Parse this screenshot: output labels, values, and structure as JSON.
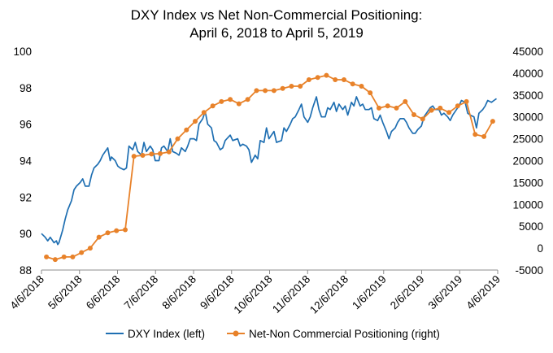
{
  "chart_data": {
    "type": "line",
    "title_line1": "DXY Index vs Net Non-Commercial Positioning:",
    "title_line2": "April 6, 2018 to April 5, 2019",
    "x_start": "2018-04-06",
    "x_end": "2019-04-06",
    "x_ticks": [
      "4/6/2018",
      "5/6/2018",
      "6/6/2018",
      "7/6/2018",
      "8/6/2018",
      "9/6/2018",
      "10/6/2018",
      "11/6/2018",
      "12/6/2018",
      "1/6/2019",
      "2/6/2019",
      "3/6/2019",
      "4/6/2019"
    ],
    "y_left": {
      "min": 88,
      "max": 100,
      "ticks": [
        88,
        90,
        92,
        94,
        96,
        98,
        100
      ]
    },
    "y_right": {
      "min": -5000,
      "max": 45000,
      "ticks": [
        -5000,
        0,
        5000,
        10000,
        15000,
        20000,
        25000,
        30000,
        35000,
        40000,
        45000
      ]
    },
    "colors": {
      "dxy": "#1f6fb2",
      "net": "#e8822a",
      "axis": "#8c8c8c"
    },
    "legend": [
      "DXY Index (left)",
      "Net-Non Commercial Positioning (right)"
    ],
    "series": [
      {
        "name": "DXY Index (left)",
        "axis": "left",
        "points": [
          [
            "2018-04-06",
            90.0
          ],
          [
            "2018-04-09",
            89.8
          ],
          [
            "2018-04-11",
            89.6
          ],
          [
            "2018-04-13",
            89.8
          ],
          [
            "2018-04-16",
            89.5
          ],
          [
            "2018-04-18",
            89.6
          ],
          [
            "2018-04-19",
            89.4
          ],
          [
            "2018-04-20",
            89.5
          ],
          [
            "2018-04-23",
            90.2
          ],
          [
            "2018-04-25",
            90.8
          ],
          [
            "2018-04-27",
            91.3
          ],
          [
            "2018-04-30",
            91.8
          ],
          [
            "2018-05-02",
            92.4
          ],
          [
            "2018-05-04",
            92.6
          ],
          [
            "2018-05-07",
            92.8
          ],
          [
            "2018-05-09",
            93.0
          ],
          [
            "2018-05-11",
            92.6
          ],
          [
            "2018-05-14",
            92.6
          ],
          [
            "2018-05-16",
            93.2
          ],
          [
            "2018-05-18",
            93.6
          ],
          [
            "2018-05-21",
            93.8
          ],
          [
            "2018-05-23",
            94.0
          ],
          [
            "2018-05-25",
            94.3
          ],
          [
            "2018-05-29",
            94.7
          ],
          [
            "2018-05-31",
            94.0
          ],
          [
            "2018-06-01",
            94.2
          ],
          [
            "2018-06-04",
            94.0
          ],
          [
            "2018-06-06",
            93.7
          ],
          [
            "2018-06-08",
            93.6
          ],
          [
            "2018-06-11",
            93.5
          ],
          [
            "2018-06-13",
            93.6
          ],
          [
            "2018-06-15",
            94.8
          ],
          [
            "2018-06-18",
            94.6
          ],
          [
            "2018-06-20",
            95.0
          ],
          [
            "2018-06-22",
            94.5
          ],
          [
            "2018-06-25",
            94.3
          ],
          [
            "2018-06-27",
            95.0
          ],
          [
            "2018-06-29",
            94.5
          ],
          [
            "2018-07-02",
            94.8
          ],
          [
            "2018-07-04",
            94.6
          ],
          [
            "2018-07-06",
            94.0
          ],
          [
            "2018-07-09",
            94.0
          ],
          [
            "2018-07-11",
            94.7
          ],
          [
            "2018-07-13",
            94.8
          ],
          [
            "2018-07-16",
            94.5
          ],
          [
            "2018-07-18",
            95.2
          ],
          [
            "2018-07-20",
            94.5
          ],
          [
            "2018-07-23",
            94.4
          ],
          [
            "2018-07-25",
            94.3
          ],
          [
            "2018-07-27",
            94.7
          ],
          [
            "2018-07-30",
            94.5
          ],
          [
            "2018-08-01",
            94.8
          ],
          [
            "2018-08-03",
            95.2
          ],
          [
            "2018-08-06",
            95.2
          ],
          [
            "2018-08-08",
            95.1
          ],
          [
            "2018-08-10",
            96.0
          ],
          [
            "2018-08-13",
            96.3
          ],
          [
            "2018-08-15",
            96.7
          ],
          [
            "2018-08-17",
            96.0
          ],
          [
            "2018-08-20",
            95.8
          ],
          [
            "2018-08-22",
            95.1
          ],
          [
            "2018-08-24",
            95.0
          ],
          [
            "2018-08-27",
            94.6
          ],
          [
            "2018-08-29",
            94.7
          ],
          [
            "2018-08-31",
            95.1
          ],
          [
            "2018-09-04",
            95.4
          ],
          [
            "2018-09-06",
            95.1
          ],
          [
            "2018-09-10",
            95.2
          ],
          [
            "2018-09-12",
            94.8
          ],
          [
            "2018-09-14",
            94.9
          ],
          [
            "2018-09-17",
            94.8
          ],
          [
            "2018-09-19",
            94.6
          ],
          [
            "2018-09-21",
            93.9
          ],
          [
            "2018-09-24",
            94.3
          ],
          [
            "2018-09-26",
            94.1
          ],
          [
            "2018-09-28",
            95.1
          ],
          [
            "2018-10-01",
            95.0
          ],
          [
            "2018-10-03",
            95.8
          ],
          [
            "2018-10-05",
            95.2
          ],
          [
            "2018-10-09",
            95.6
          ],
          [
            "2018-10-11",
            95.0
          ],
          [
            "2018-10-15",
            95.1
          ],
          [
            "2018-10-17",
            95.8
          ],
          [
            "2018-10-19",
            95.6
          ],
          [
            "2018-10-22",
            96.0
          ],
          [
            "2018-10-24",
            96.3
          ],
          [
            "2018-10-26",
            96.4
          ],
          [
            "2018-10-29",
            96.8
          ],
          [
            "2018-10-31",
            97.1
          ],
          [
            "2018-11-02",
            96.4
          ],
          [
            "2018-11-05",
            96.1
          ],
          [
            "2018-11-07",
            96.4
          ],
          [
            "2018-11-09",
            96.9
          ],
          [
            "2018-11-12",
            97.5
          ],
          [
            "2018-11-14",
            96.8
          ],
          [
            "2018-11-16",
            96.4
          ],
          [
            "2018-11-19",
            96.4
          ],
          [
            "2018-11-21",
            96.9
          ],
          [
            "2018-11-23",
            96.8
          ],
          [
            "2018-11-26",
            97.2
          ],
          [
            "2018-11-28",
            96.7
          ],
          [
            "2018-11-30",
            97.1
          ],
          [
            "2018-12-03",
            96.8
          ],
          [
            "2018-12-05",
            97.0
          ],
          [
            "2018-12-07",
            96.5
          ],
          [
            "2018-12-10",
            97.2
          ],
          [
            "2018-12-12",
            97.0
          ],
          [
            "2018-12-14",
            97.5
          ],
          [
            "2018-12-17",
            97.0
          ],
          [
            "2018-12-19",
            97.1
          ],
          [
            "2018-12-21",
            96.8
          ],
          [
            "2018-12-24",
            96.8
          ],
          [
            "2018-12-26",
            96.9
          ],
          [
            "2018-12-28",
            96.3
          ],
          [
            "2018-12-31",
            96.2
          ],
          [
            "2019-01-02",
            96.5
          ],
          [
            "2019-01-04",
            96.1
          ],
          [
            "2019-01-07",
            95.6
          ],
          [
            "2019-01-09",
            95.2
          ],
          [
            "2019-01-11",
            95.6
          ],
          [
            "2019-01-14",
            95.8
          ],
          [
            "2019-01-16",
            96.1
          ],
          [
            "2019-01-18",
            96.3
          ],
          [
            "2019-01-21",
            96.3
          ],
          [
            "2019-01-23",
            96.1
          ],
          [
            "2019-01-25",
            95.8
          ],
          [
            "2019-01-28",
            95.5
          ],
          [
            "2019-01-30",
            95.5
          ],
          [
            "2019-02-01",
            95.7
          ],
          [
            "2019-02-04",
            95.9
          ],
          [
            "2019-02-06",
            96.4
          ],
          [
            "2019-02-08",
            96.6
          ],
          [
            "2019-02-11",
            96.9
          ],
          [
            "2019-02-13",
            97.0
          ],
          [
            "2019-02-15",
            96.8
          ],
          [
            "2019-02-18",
            96.8
          ],
          [
            "2019-02-20",
            96.5
          ],
          [
            "2019-02-22",
            96.6
          ],
          [
            "2019-02-25",
            96.4
          ],
          [
            "2019-02-27",
            96.2
          ],
          [
            "2019-03-01",
            96.5
          ],
          [
            "2019-03-04",
            96.8
          ],
          [
            "2019-03-06",
            97.0
          ],
          [
            "2019-03-08",
            97.3
          ],
          [
            "2019-03-11",
            97.2
          ],
          [
            "2019-03-13",
            96.6
          ],
          [
            "2019-03-15",
            96.5
          ],
          [
            "2019-03-18",
            96.4
          ],
          [
            "2019-03-20",
            95.8
          ],
          [
            "2019-03-22",
            96.6
          ],
          [
            "2019-03-25",
            96.8
          ],
          [
            "2019-03-27",
            97.0
          ],
          [
            "2019-03-29",
            97.3
          ],
          [
            "2019-04-01",
            97.2
          ],
          [
            "2019-04-03",
            97.3
          ],
          [
            "2019-04-05",
            97.4
          ]
        ]
      },
      {
        "name": "Net-Non Commercial Positioning (right)",
        "axis": "right",
        "points": [
          [
            "2018-04-10",
            -2000
          ],
          [
            "2018-04-17",
            -2600
          ],
          [
            "2018-04-24",
            -2000
          ],
          [
            "2018-05-01",
            -2000
          ],
          [
            "2018-05-08",
            -1000
          ],
          [
            "2018-05-15",
            0
          ],
          [
            "2018-05-22",
            2500
          ],
          [
            "2018-05-29",
            3500
          ],
          [
            "2018-06-05",
            4000
          ],
          [
            "2018-06-12",
            4200
          ],
          [
            "2018-06-19",
            21000
          ],
          [
            "2018-06-26",
            21200
          ],
          [
            "2018-07-03",
            21500
          ],
          [
            "2018-07-10",
            21600
          ],
          [
            "2018-07-17",
            22000
          ],
          [
            "2018-07-24",
            25000
          ],
          [
            "2018-07-31",
            27000
          ],
          [
            "2018-08-07",
            29000
          ],
          [
            "2018-08-14",
            31000
          ],
          [
            "2018-08-21",
            32500
          ],
          [
            "2018-08-28",
            33500
          ],
          [
            "2018-09-04",
            34000
          ],
          [
            "2018-09-11",
            33000
          ],
          [
            "2018-09-18",
            34000
          ],
          [
            "2018-09-25",
            36000
          ],
          [
            "2018-10-02",
            36000
          ],
          [
            "2018-10-09",
            36000
          ],
          [
            "2018-10-16",
            36500
          ],
          [
            "2018-10-23",
            37000
          ],
          [
            "2018-10-30",
            37000
          ],
          [
            "2018-11-06",
            38500
          ],
          [
            "2018-11-13",
            39000
          ],
          [
            "2018-11-20",
            39500
          ],
          [
            "2018-11-27",
            38500
          ],
          [
            "2018-12-04",
            38500
          ],
          [
            "2018-12-11",
            37500
          ],
          [
            "2018-12-18",
            37000
          ],
          [
            "2018-12-25",
            35500
          ],
          [
            "2019-01-01",
            32000
          ],
          [
            "2019-01-08",
            32500
          ],
          [
            "2019-01-15",
            32000
          ],
          [
            "2019-01-22",
            33500
          ],
          [
            "2019-01-29",
            30500
          ],
          [
            "2019-02-05",
            29500
          ],
          [
            "2019-02-12",
            31500
          ],
          [
            "2019-02-19",
            32000
          ],
          [
            "2019-02-26",
            31000
          ],
          [
            "2019-03-05",
            32500
          ],
          [
            "2019-03-12",
            33500
          ],
          [
            "2019-03-19",
            26000
          ],
          [
            "2019-03-26",
            25500
          ],
          [
            "2019-04-02",
            29000
          ]
        ]
      }
    ]
  }
}
